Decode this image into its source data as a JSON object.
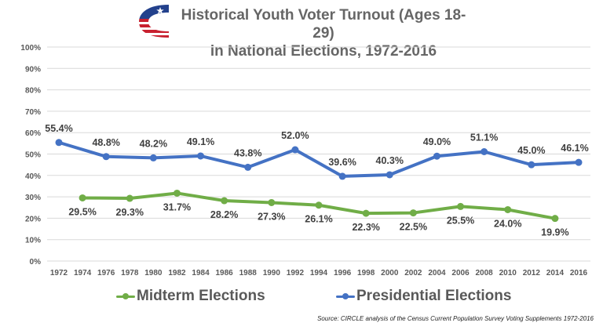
{
  "header": {
    "title_line1": "Historical Youth Voter Turnout (Ages 18-29)",
    "title_line2": "in National Elections, 1972-2016",
    "logo_icon": "flag-c-logo-icon"
  },
  "source": "Source: CIRCLE analysis of the Census Current Population Survey Voting Supplements 1972-2016",
  "colors": {
    "presidential": "#4472C4",
    "midterm": "#70AD47",
    "grid": "#D9D9D9",
    "tick_text": "#595959",
    "label_text": "#404040"
  },
  "chart_data": {
    "type": "line",
    "title": "Historical Youth Voter Turnout (Ages 18-29) in National Elections, 1972-2016",
    "xlabel": "",
    "ylabel": "",
    "ylim": [
      0,
      100
    ],
    "y_ticks": [
      0,
      10,
      20,
      30,
      40,
      50,
      60,
      70,
      80,
      90,
      100
    ],
    "y_tick_labels": [
      "0%",
      "10%",
      "20%",
      "30%",
      "40%",
      "50%",
      "60%",
      "70%",
      "80%",
      "90%",
      "100%"
    ],
    "grid": true,
    "legend_position": "bottom",
    "categories": [
      "1972",
      "1974",
      "1976",
      "1978",
      "1980",
      "1982",
      "1984",
      "1986",
      "1988",
      "1990",
      "1992",
      "1994",
      "1996",
      "1998",
      "2000",
      "2002",
      "2004",
      "2006",
      "2008",
      "2010",
      "2012",
      "2014",
      "2016"
    ],
    "series": [
      {
        "name": "Presidential Elections",
        "x": [
          "1972",
          "1976",
          "1980",
          "1984",
          "1988",
          "1992",
          "1996",
          "2000",
          "2004",
          "2008",
          "2012",
          "2016"
        ],
        "values": [
          55.4,
          48.8,
          48.2,
          49.1,
          43.8,
          52.0,
          39.6,
          40.3,
          49.0,
          51.1,
          45.0,
          46.1
        ],
        "labels": [
          "55.4%",
          "48.8%",
          "48.2%",
          "49.1%",
          "43.8%",
          "52.0%",
          "39.6%",
          "40.3%",
          "49.0%",
          "51.1%",
          "45.0%",
          "46.1%"
        ]
      },
      {
        "name": "Midterm Elections",
        "x": [
          "1974",
          "1978",
          "1982",
          "1986",
          "1990",
          "1994",
          "1998",
          "2002",
          "2006",
          "2010",
          "2014"
        ],
        "values": [
          29.5,
          29.3,
          31.7,
          28.2,
          27.3,
          26.1,
          22.3,
          22.5,
          25.5,
          24.0,
          19.9
        ],
        "labels": [
          "29.5%",
          "29.3%",
          "31.7%",
          "28.2%",
          "27.3%",
          "26.1%",
          "22.3%",
          "22.5%",
          "25.5%",
          "24.0%",
          "19.9%"
        ]
      }
    ]
  },
  "legend": {
    "midterm_label": "Midterm Elections",
    "presidential_label": "Presidential Elections"
  }
}
